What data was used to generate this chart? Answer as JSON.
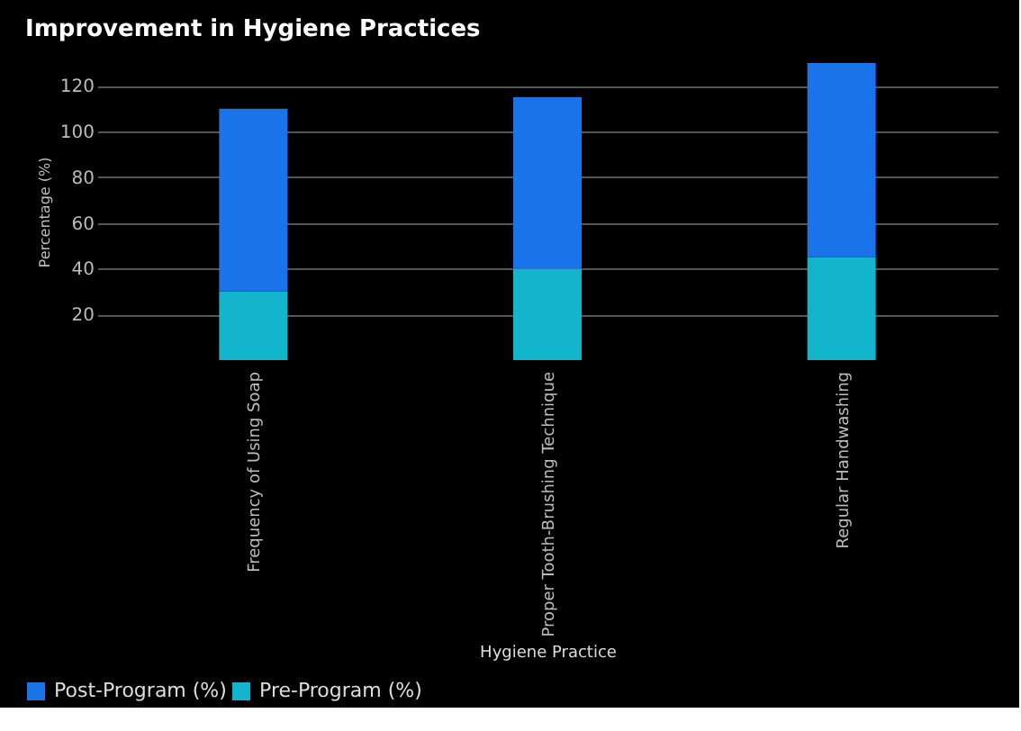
{
  "chart_data": {
    "type": "bar",
    "title": "Improvement in Hygiene Practices",
    "xlabel": "Hygiene Practice",
    "ylabel": "Percentage (%)",
    "categories": [
      "Frequency of Using Soap",
      "Proper Tooth-Brushing Technique",
      "Regular Handwashing"
    ],
    "series": [
      {
        "name": "Pre-Program (%)",
        "color": "#12b5cb",
        "values": [
          30,
          40,
          45
        ]
      },
      {
        "name": "Post-Program (%)",
        "color": "#1a73e8",
        "values": [
          80,
          75,
          85
        ]
      }
    ],
    "stacked": true,
    "ylim": [
      0,
      130
    ],
    "yticks": [
      20,
      40,
      60,
      80,
      100,
      120
    ],
    "grid": "y",
    "legend": "bottom left"
  }
}
